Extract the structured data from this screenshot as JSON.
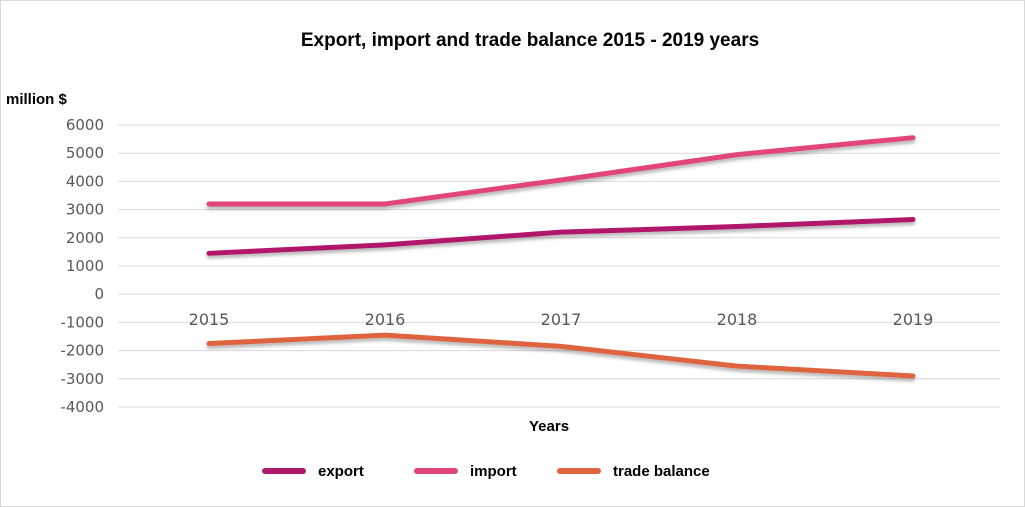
{
  "chart_data": {
    "type": "line",
    "title": "Export, import and trade balance 2015 - 2019 years",
    "ylabel": "million $",
    "xlabel": "Years",
    "categories": [
      "2015",
      "2016",
      "2017",
      "2018",
      "2019"
    ],
    "yticks": [
      "6000",
      "5000",
      "4000",
      "3000",
      "2000",
      "1000",
      "0",
      "-1000",
      "-2000",
      "-3000",
      "-4000"
    ],
    "ylim": [
      -4000,
      6000
    ],
    "grid": true,
    "legend_position": "bottom",
    "series": [
      {
        "name": "export",
        "color": "#b0186a",
        "values": [
          1450,
          1750,
          2200,
          2400,
          2650
        ]
      },
      {
        "name": "import",
        "color": "#e2457a",
        "values": [
          3200,
          3200,
          4050,
          4950,
          5550
        ]
      },
      {
        "name": "trade balance",
        "color": "#e0633f",
        "values": [
          -1750,
          -1450,
          -1850,
          -2550,
          -2900
        ]
      }
    ]
  }
}
